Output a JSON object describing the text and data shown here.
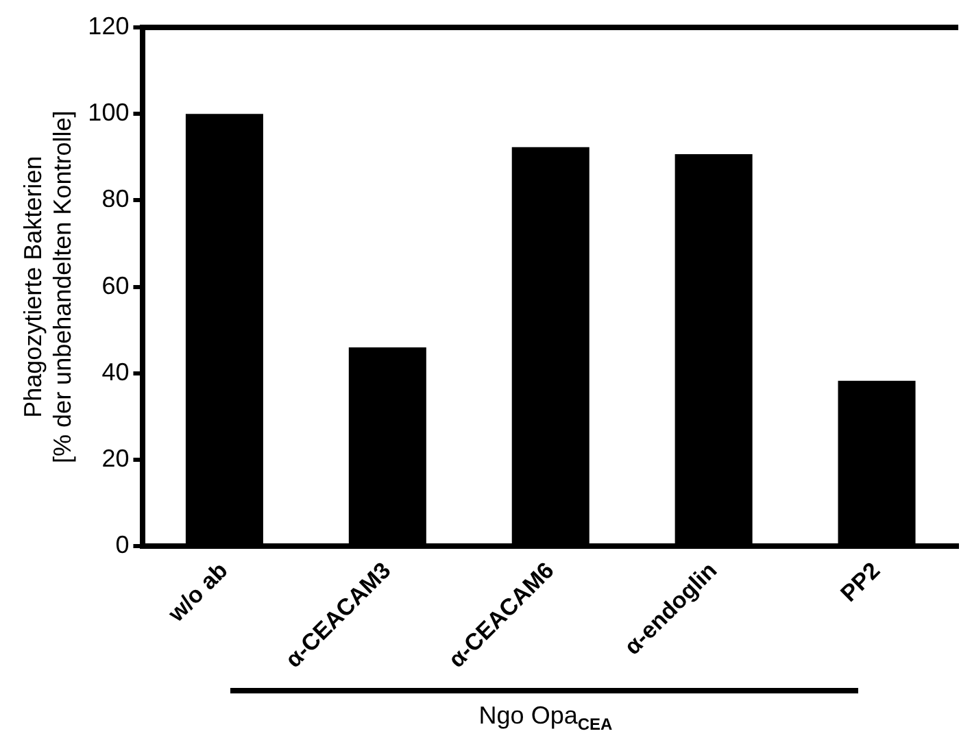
{
  "chart_data": {
    "type": "bar",
    "ylabel": "Phagozytierte Bakterien\n[% der unbehandelten Kontrolle]",
    "xlabel": "Ngo Opa$_{CEA}$",
    "categories": [
      "w/o ab",
      "α-CEACAM3",
      "α-CEACAM6",
      "α-endoglin",
      "PP2"
    ],
    "values": [
      100,
      46,
      92.3,
      90.7,
      38.3
    ],
    "color": "#000000",
    "ylim": [
      0,
      120
    ],
    "yticks": [
      0,
      20,
      40,
      60,
      80,
      100,
      120
    ],
    "grid": false,
    "legend": false
  }
}
